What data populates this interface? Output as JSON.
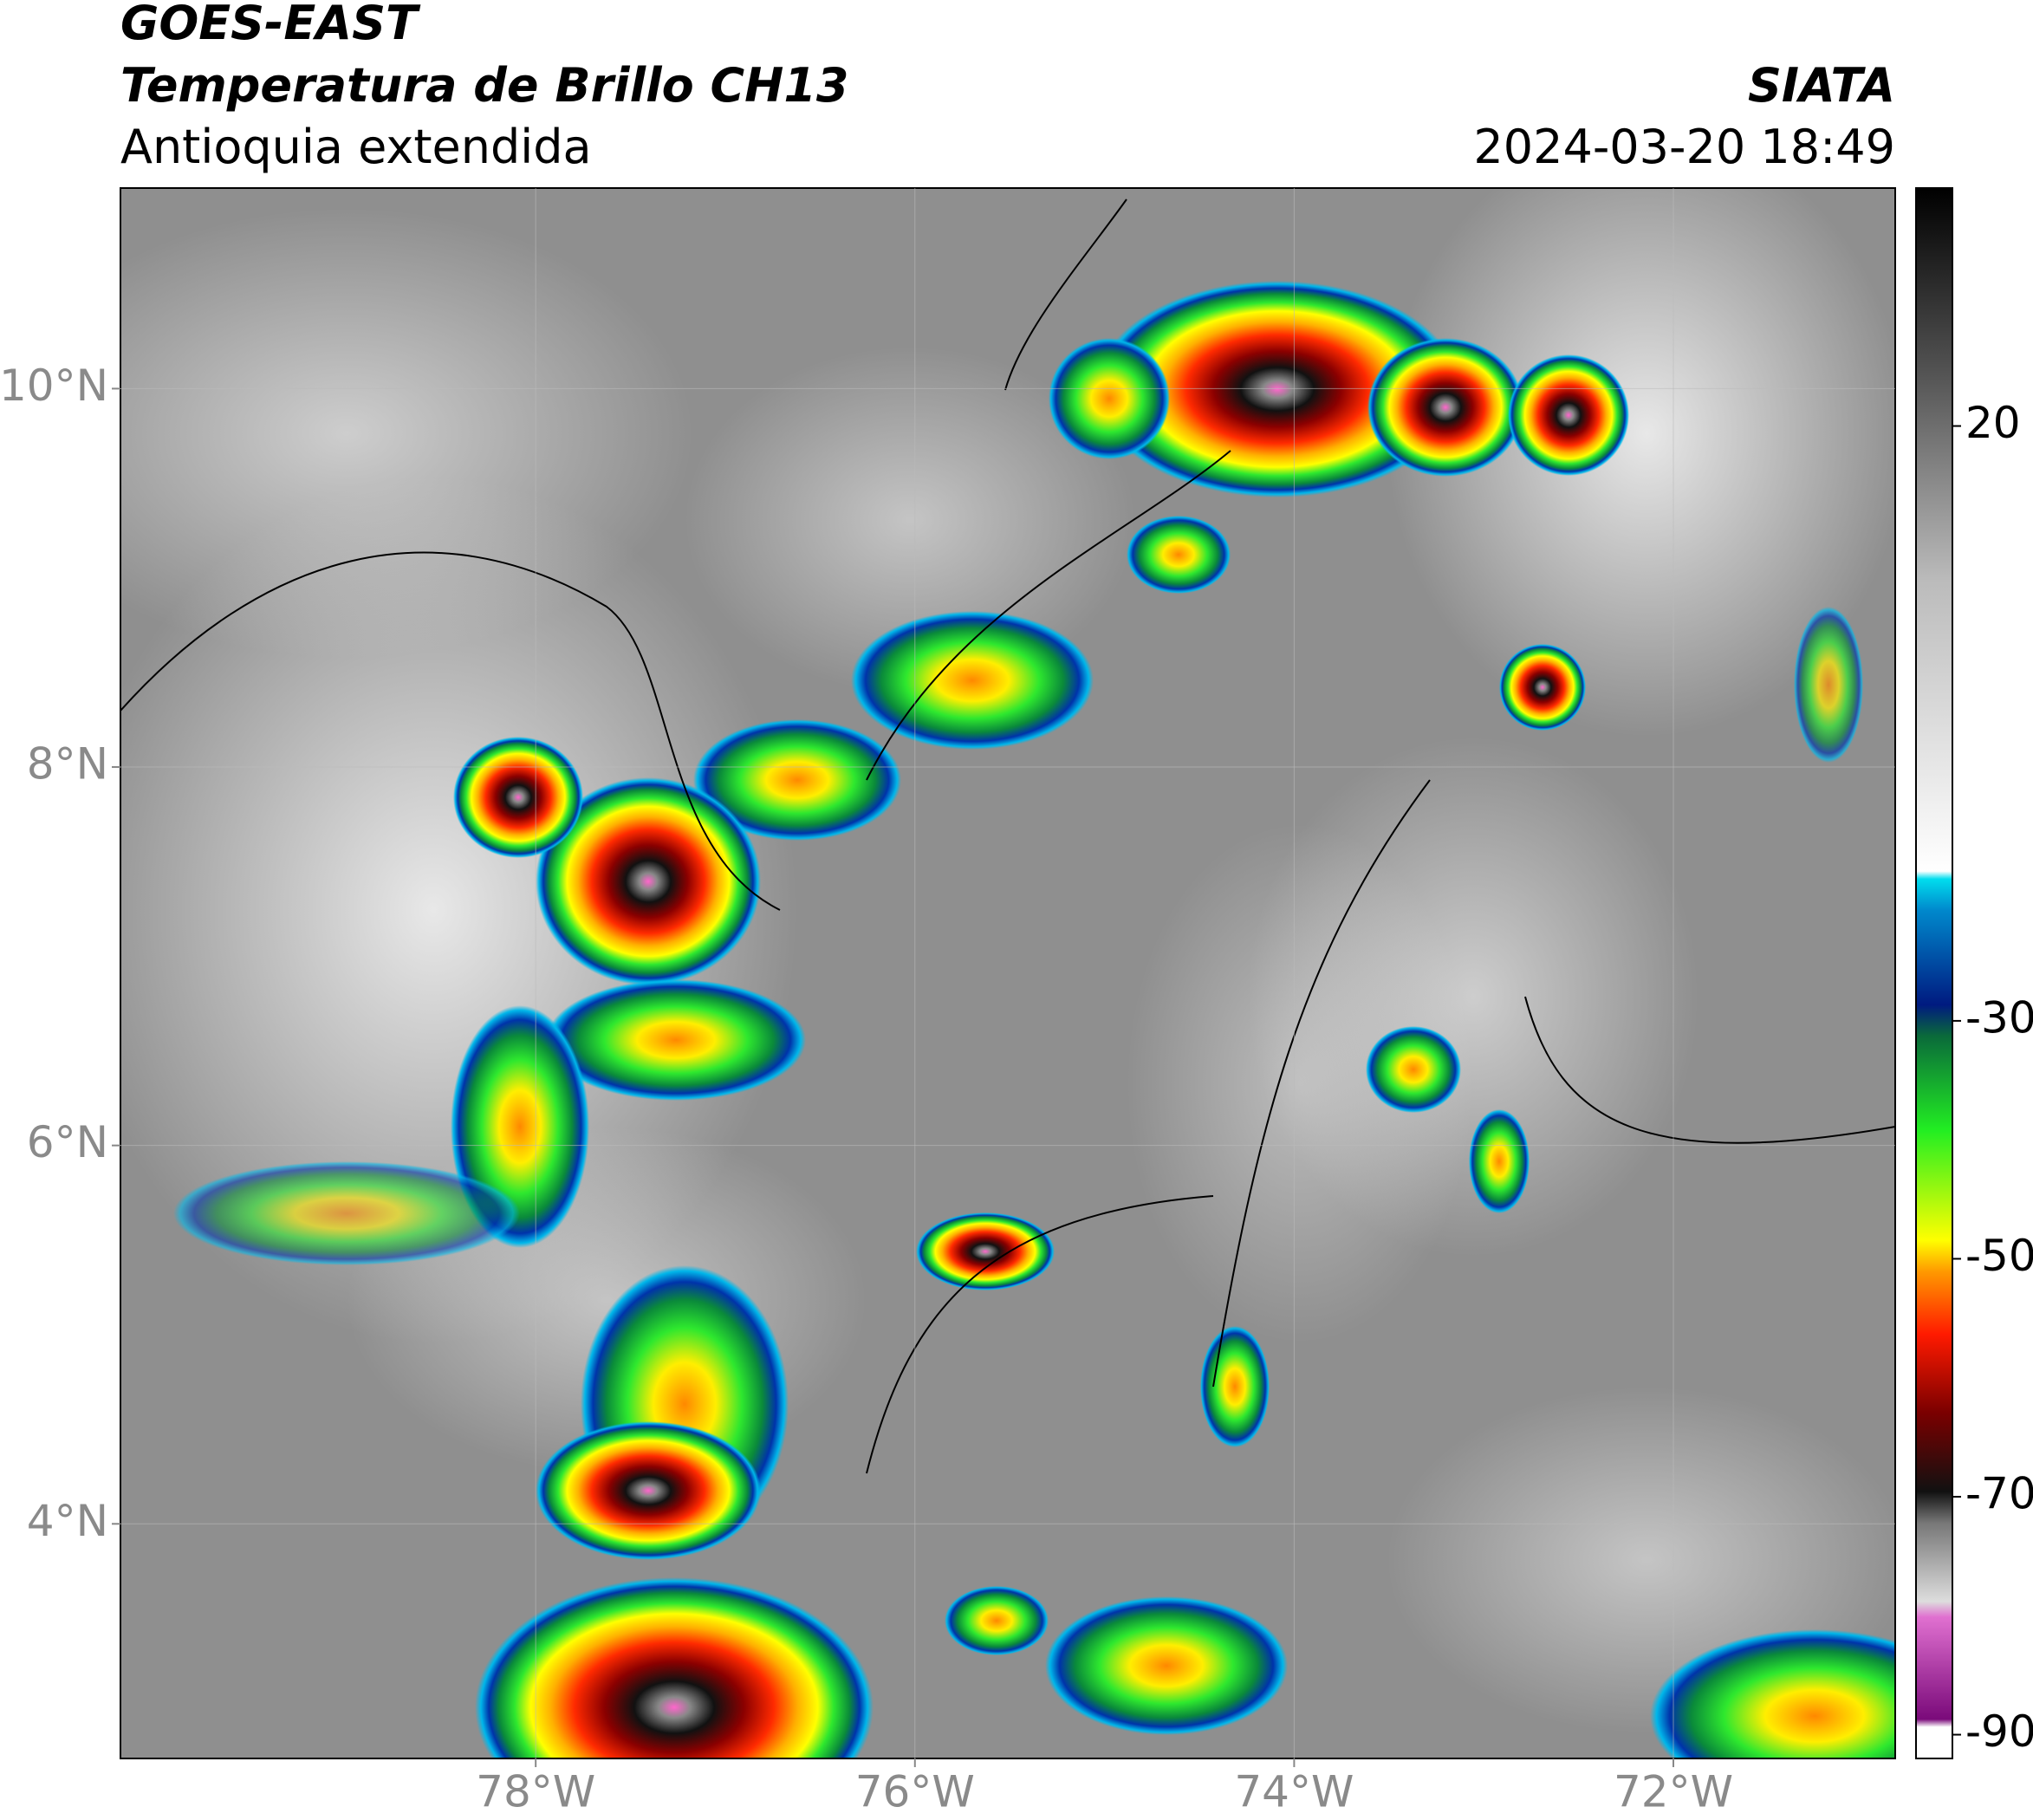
{
  "header": {
    "title": "GOES-EAST",
    "subtitle": "Temperatura de Brillo CH13",
    "region": "Antioquia extendida",
    "source": "SIATA",
    "datetime": "2024-03-20 18:49"
  },
  "map": {
    "xlim": [
      -80.19,
      -70.83
    ],
    "ylim": [
      2.76,
      11.06
    ],
    "xticks": [
      {
        "value": -78,
        "label": "78°W"
      },
      {
        "value": -76,
        "label": "76°W"
      },
      {
        "value": -74,
        "label": "74°W"
      },
      {
        "value": -72,
        "label": "72°W"
      }
    ],
    "yticks": [
      {
        "value": 10,
        "label": "10°N"
      },
      {
        "value": 8,
        "label": "8°N"
      },
      {
        "value": 6,
        "label": "6°N"
      },
      {
        "value": 4,
        "label": "4°N"
      }
    ]
  },
  "colorbar": {
    "clim": [
      -92,
      40
    ],
    "ticks": [
      20,
      -30,
      -50,
      -70,
      -90
    ]
  }
}
